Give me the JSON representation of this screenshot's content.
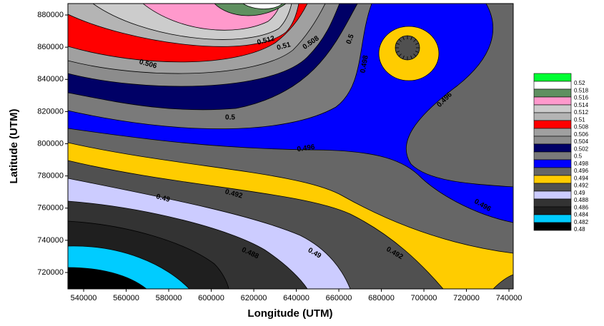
{
  "chart_data": {
    "type": "contour",
    "xlabel": "Longitude (UTM)",
    "ylabel": "Latitude (UTM)",
    "xlim": [
      532600,
      742000
    ],
    "ylim": [
      709800,
      887100
    ],
    "xticks": [
      540000,
      560000,
      580000,
      600000,
      620000,
      640000,
      660000,
      680000,
      700000,
      720000,
      740000
    ],
    "yticks": [
      720000,
      740000,
      760000,
      780000,
      800000,
      820000,
      840000,
      860000,
      880000
    ],
    "levels": [
      0.52,
      0.518,
      0.516,
      0.514,
      0.512,
      0.51,
      0.508,
      0.506,
      0.504,
      0.502,
      0.5,
      0.498,
      0.496,
      0.494,
      0.492,
      0.49,
      0.488,
      0.486,
      0.484,
      0.482,
      0.48
    ],
    "colors": [
      "#00ff33",
      "#ffffff",
      "#5f9060",
      "#ff99cc",
      "#cccccc",
      "#b4b4b4",
      "#ff0000",
      "#a0a0a0",
      "#8c8c8c",
      "#000066",
      "#7a7a7a",
      "#0000ff",
      "#666666",
      "#ffcc00",
      "#505050",
      "#ccccff",
      "#333333",
      "#1f1f1f",
      "#00ccff",
      "#000000"
    ],
    "contour_labels": [
      0.512,
      0.51,
      0.508,
      0.506,
      0.5,
      0.498,
      0.5,
      0.496,
      0.496,
      0.496,
      0.492,
      0.49,
      0.488,
      0.49,
      0.492
    ]
  }
}
